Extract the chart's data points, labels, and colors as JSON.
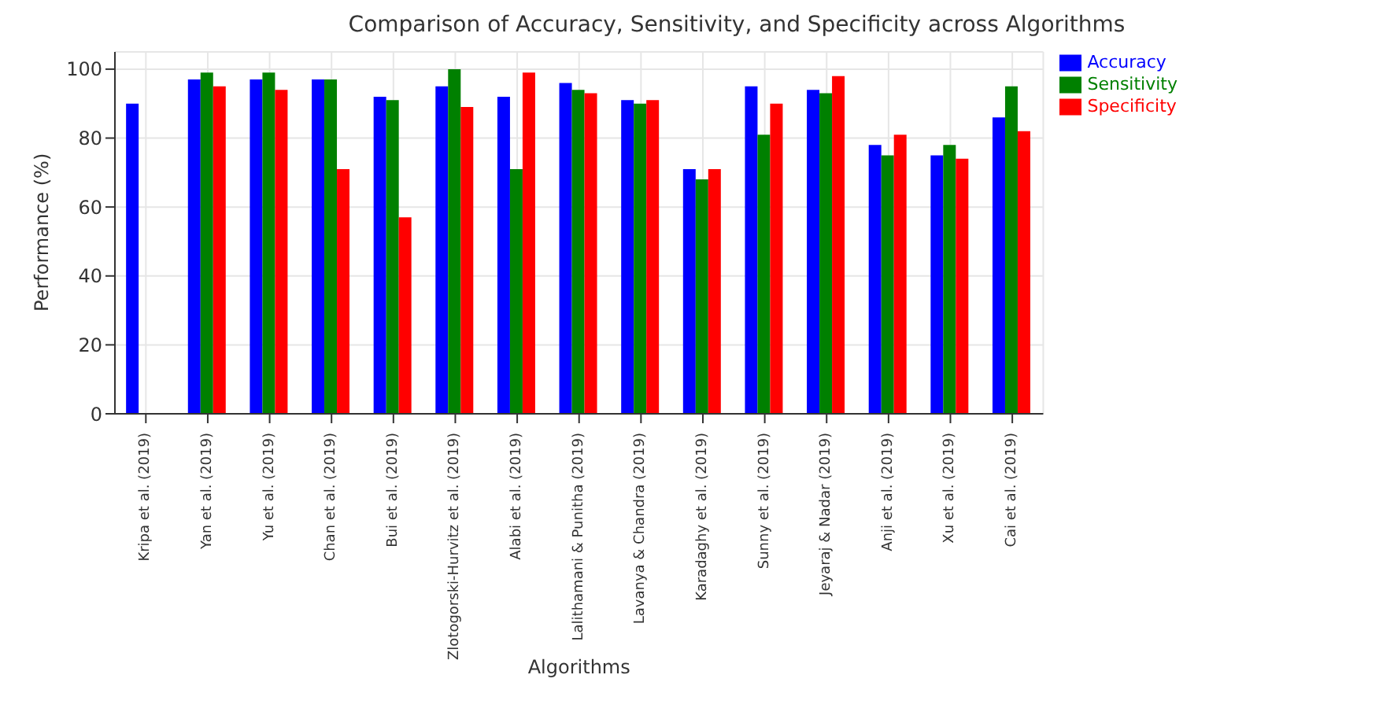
{
  "chart_data": {
    "type": "bar",
    "title": "Comparison of Accuracy, Sensitivity, and Specificity across Algorithms",
    "xlabel": "Algorithms",
    "ylabel": "Performance (%)",
    "categories": [
      "Kripa et al. (2019)",
      "Yan et al. (2019)",
      "Yu et al. (2019)",
      "Chan et al. (2019)",
      "Bui et al. (2019)",
      "Zlotogorski-Hurvitz et al. (2019)",
      "Alabi et al. (2019)",
      "Lalithamani & Punitha (2019)",
      "Lavanya & Chandra (2019)",
      "Karadaghy et al. (2019)",
      "Sunny et al. (2019)",
      "Jeyaraj & Nadar (2019)",
      "Anji et al. (2019)",
      "Xu et al. (2019)",
      "Cai et al. (2019)"
    ],
    "series": [
      {
        "name": "Accuracy",
        "color": "#0000ff",
        "values": [
          90,
          97,
          97,
          97,
          92,
          95,
          92,
          96,
          91,
          71,
          95,
          94,
          78,
          75,
          86
        ]
      },
      {
        "name": "Sensitivity",
        "color": "#008000",
        "values": [
          null,
          99,
          99,
          97,
          91,
          100,
          71,
          94,
          90,
          68,
          81,
          93,
          75,
          78,
          95
        ]
      },
      {
        "name": "Specificity",
        "color": "#ff0000",
        "values": [
          null,
          95,
          94,
          71,
          57,
          89,
          99,
          93,
          91,
          71,
          90,
          98,
          81,
          74,
          82
        ]
      }
    ],
    "ylim": [
      0,
      105
    ],
    "yticks": [
      0,
      20,
      40,
      60,
      80,
      100
    ],
    "grid": true,
    "legend": "top right"
  }
}
